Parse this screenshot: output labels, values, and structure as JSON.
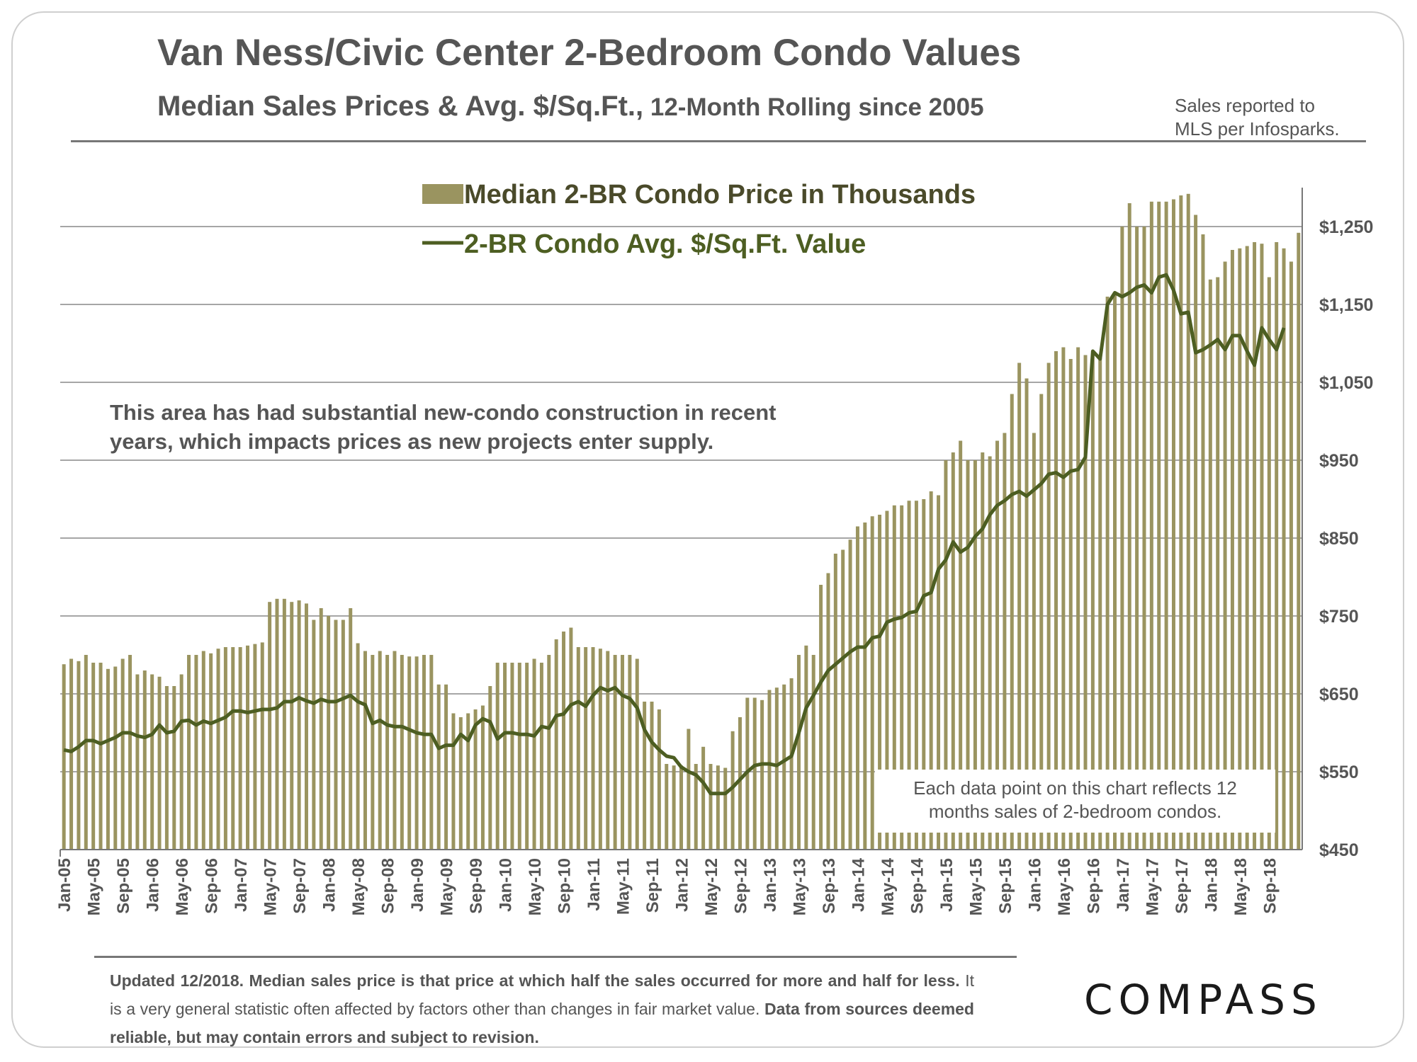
{
  "header": {
    "title": "Van Ness/Civic Center 2-Bedroom Condo Values",
    "subtitle_main": "Median Sales Prices & Avg. $/Sq.Ft.,",
    "subtitle_small": " 12-Month Rolling since 2005",
    "source_line1": "Sales reported to",
    "source_line2": "MLS per Infosparks."
  },
  "annotation": {
    "line1": "This area has had substantial new-condo construction in recent",
    "line2": "years, which impacts prices as new projects enter supply."
  },
  "note_box": {
    "line1": "Each data point on this chart reflects 12",
    "line2": "months sales of 2-bedroom condos."
  },
  "footer": {
    "bold_part": "Updated 12/2018. Median sales price is that price at which half the sales occurred for more and half for less.",
    "regular_part": " It is a very general statistic often affected by factors other than changes in fair market value.",
    "bold_part2": " Data from sources deemed reliable, but may contain errors and subject to revision."
  },
  "logo": {
    "text": "COMPASS"
  },
  "colors": {
    "bar": "#9a9460",
    "line": "#4d5e22",
    "grid": "#888888",
    "text": "#555555"
  },
  "chart_data": {
    "type": "bar",
    "title": "Van Ness/Civic Center 2-Bedroom Condo Values",
    "xlabel": "",
    "ylabel": "",
    "ylim": [
      450,
      1300
    ],
    "y_ticks": [
      450,
      550,
      650,
      750,
      850,
      950,
      1050,
      1150,
      1250
    ],
    "y_tick_labels": [
      "$450",
      "$550",
      "$650",
      "$750",
      "$850",
      "$950",
      "$1,050",
      "$1,150",
      "$1,250"
    ],
    "grid": true,
    "legend_position": "top-center",
    "x_tick_labels": [
      "Jan-05",
      "May-05",
      "Sep-05",
      "Jan-06",
      "May-06",
      "Sep-06",
      "Jan-07",
      "May-07",
      "Sep-07",
      "Jan-08",
      "May-08",
      "Sep-08",
      "Jan-09",
      "May-09",
      "Sep-09",
      "Jan-10",
      "May-10",
      "Sep-10",
      "Jan-11",
      "May-11",
      "Sep-11",
      "Jan-12",
      "May-12",
      "Sep-12",
      "Jan-13",
      "May-13",
      "Sep-13",
      "Jan-14",
      "May-14",
      "Sep-14",
      "Jan-15",
      "May-15",
      "Sep-15",
      "Jan-16",
      "May-16",
      "Sep-16",
      "Jan-17",
      "May-17",
      "Sep-17",
      "Jan-18",
      "May-18",
      "Sep-18"
    ],
    "x_tick_every_months": 4,
    "start_month": "Jan-05",
    "series": [
      {
        "name": "Median 2-BR Condo Price in Thousands",
        "type": "bar",
        "values": [
          688,
          695,
          692,
          700,
          690,
          690,
          682,
          685,
          695,
          700,
          675,
          680,
          675,
          672,
          660,
          660,
          675,
          700,
          700,
          705,
          702,
          708,
          710,
          710,
          710,
          712,
          714,
          716,
          768,
          772,
          772,
          768,
          770,
          766,
          745,
          760,
          750,
          745,
          745,
          760,
          715,
          705,
          700,
          705,
          700,
          705,
          700,
          698,
          698,
          700,
          700,
          662,
          662,
          625,
          620,
          625,
          630,
          635,
          660,
          690,
          690,
          690,
          690,
          690,
          695,
          690,
          700,
          720,
          730,
          735,
          710,
          710,
          710,
          708,
          705,
          700,
          700,
          700,
          695,
          640,
          640,
          630,
          560,
          558,
          558,
          605,
          560,
          582,
          560,
          558,
          555,
          602,
          620,
          645,
          645,
          642,
          655,
          658,
          662,
          670,
          700,
          712,
          700,
          790,
          805,
          830,
          835,
          848,
          865,
          870,
          878,
          880,
          885,
          892,
          892,
          898,
          898,
          900,
          910,
          905,
          950,
          960,
          975,
          950,
          950,
          960,
          955,
          975,
          985,
          1035,
          1075,
          1055,
          985,
          1035,
          1075,
          1090,
          1095,
          1080,
          1095,
          1085,
          1085,
          1085,
          1160,
          1165,
          1250,
          1280,
          1250,
          1250,
          1282,
          1282,
          1282,
          1285,
          1290,
          1292,
          1265,
          1240,
          1182,
          1185,
          1205,
          1220,
          1222,
          1225,
          1230,
          1228,
          1185,
          1230,
          1222,
          1205,
          1242
        ]
      },
      {
        "name": "2-BR Condo Avg. $/Sq.Ft. Value",
        "type": "line",
        "values": [
          578,
          576,
          582,
          590,
          590,
          586,
          590,
          594,
          600,
          600,
          596,
          594,
          598,
          610,
          600,
          602,
          615,
          616,
          610,
          615,
          612,
          616,
          620,
          628,
          628,
          626,
          628,
          630,
          630,
          632,
          640,
          640,
          645,
          641,
          638,
          643,
          640,
          640,
          644,
          648,
          640,
          636,
          612,
          616,
          610,
          608,
          608,
          604,
          600,
          598,
          598,
          580,
          584,
          584,
          598,
          590,
          610,
          618,
          614,
          592,
          600,
          600,
          598,
          598,
          596,
          608,
          606,
          622,
          624,
          636,
          640,
          634,
          648,
          658,
          654,
          658,
          648,
          644,
          632,
          604,
          588,
          578,
          570,
          568,
          556,
          550,
          546,
          536,
          522,
          522,
          522,
          530,
          540,
          550,
          558,
          560,
          560,
          558,
          564,
          570,
          600,
          632,
          648,
          665,
          680,
          688,
          696,
          704,
          710,
          710,
          722,
          724,
          742,
          746,
          748,
          754,
          756,
          776,
          780,
          810,
          822,
          845,
          832,
          838,
          852,
          862,
          880,
          892,
          898,
          906,
          910,
          904,
          912,
          920,
          932,
          934,
          928,
          936,
          938,
          954,
          1090,
          1080,
          1150,
          1165,
          1160,
          1165,
          1172,
          1175,
          1165,
          1185,
          1188,
          1168,
          1138,
          1140,
          1088,
          1092,
          1098,
          1105,
          1092,
          1110,
          1110,
          1090,
          1072,
          1120,
          1105,
          1092,
          1120
        ]
      }
    ]
  }
}
